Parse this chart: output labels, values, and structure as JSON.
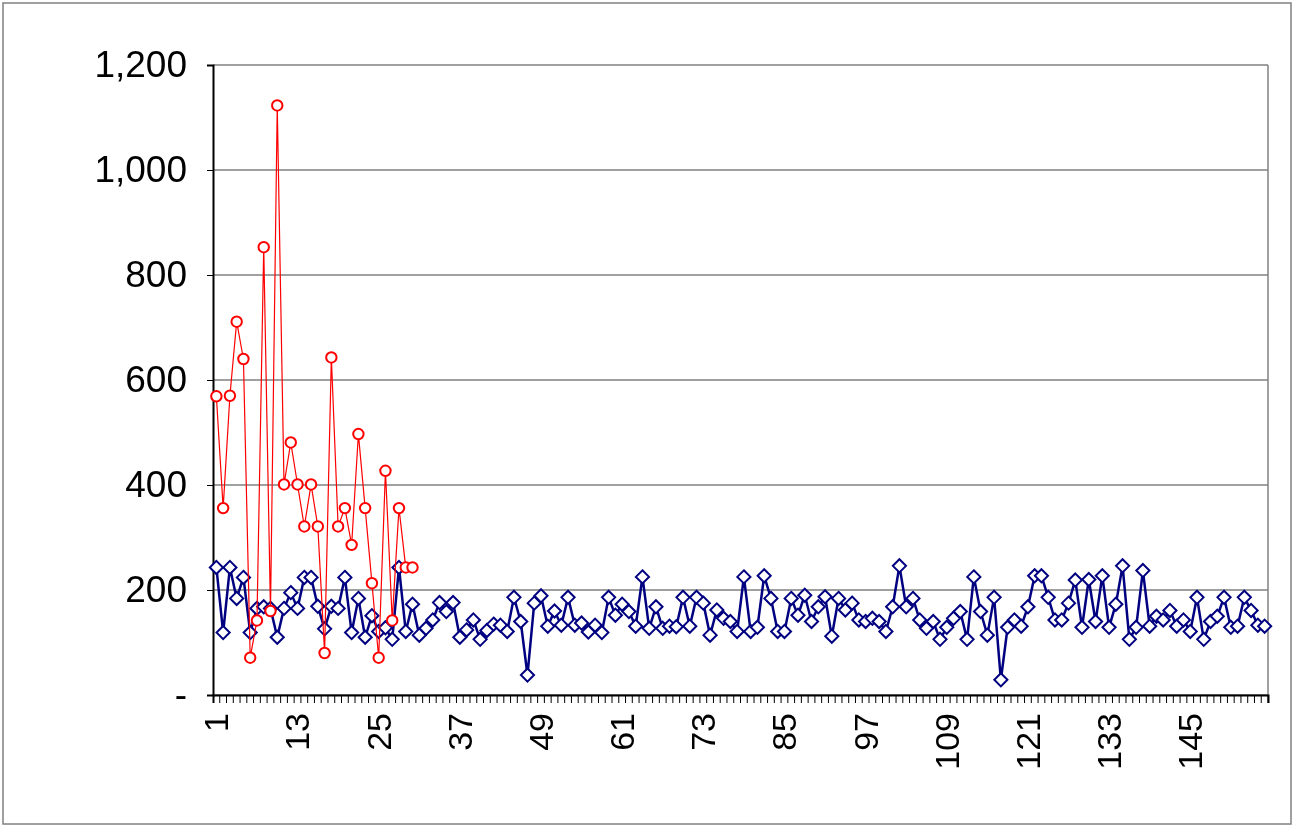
{
  "chart_data": {
    "type": "line",
    "categories": [
      "1",
      null,
      null,
      null,
      null,
      null,
      null,
      null,
      null,
      null,
      null,
      null,
      "13",
      null,
      null,
      null,
      null,
      null,
      null,
      null,
      null,
      null,
      null,
      null,
      "25",
      null,
      null,
      null,
      null,
      null,
      null,
      null,
      null,
      null,
      null,
      null,
      "37",
      null,
      null,
      null,
      null,
      null,
      null,
      null,
      null,
      null,
      null,
      null,
      "49",
      null,
      null,
      null,
      null,
      null,
      null,
      null,
      null,
      null,
      null,
      null,
      "61",
      null,
      null,
      null,
      null,
      null,
      null,
      null,
      null,
      null,
      null,
      null,
      "73",
      null,
      null,
      null,
      null,
      null,
      null,
      null,
      null,
      null,
      null,
      null,
      "85",
      null,
      null,
      null,
      null,
      null,
      null,
      null,
      null,
      null,
      null,
      null,
      "97",
      null,
      null,
      null,
      null,
      null,
      null,
      null,
      null,
      null,
      null,
      null,
      "109",
      null,
      null,
      null,
      null,
      null,
      null,
      null,
      null,
      null,
      null,
      null,
      "121",
      null,
      null,
      null,
      null,
      null,
      null,
      null,
      null,
      null,
      null,
      null,
      "133",
      null,
      null,
      null,
      null,
      null,
      null,
      null,
      null,
      null,
      null,
      null,
      "145",
      null,
      null,
      null,
      null,
      null,
      null,
      null,
      null,
      null,
      null,
      null
    ],
    "series": [
      {
        "color": "#000080",
        "marker": "diamond",
        "values": [
          243,
          119,
          243,
          184,
          224,
          119,
          165,
          168,
          165,
          110,
          165,
          195,
          165,
          224,
          224,
          169,
          126,
          169,
          165,
          224,
          119,
          184,
          110,
          151,
          121,
          128,
          106,
          243,
          121,
          173,
          114,
          127,
          143,
          176,
          159,
          176,
          110,
          124,
          143,
          106,
          123,
          135,
          133,
          121,
          186,
          140,
          38,
          175,
          189,
          131,
          160,
          133,
          186,
          133,
          137,
          120,
          133,
          119,
          186,
          152,
          173,
          159,
          131,
          225,
          127,
          168,
          127,
          131,
          130,
          186,
          131,
          186,
          175,
          114,
          162,
          146,
          140,
          121,
          225,
          121,
          129,
          227,
          184,
          121,
          121,
          184,
          152,
          190,
          140,
          168,
          187,
          112,
          184,
          162,
          175,
          143,
          140,
          146,
          140,
          121,
          168,
          246,
          168,
          184,
          143,
          127,
          140,
          106,
          129,
          146,
          159,
          106,
          225,
          159,
          114,
          186,
          29,
          129,
          143,
          131,
          168,
          227,
          227,
          186,
          143,
          143,
          175,
          219,
          129,
          220,
          140,
          227,
          129,
          173,
          246,
          106,
          129,
          237,
          131,
          150,
          143,
          161,
          131,
          143,
          121,
          186,
          106,
          140,
          150,
          186,
          129,
          131,
          186,
          161,
          133,
          131
        ]
      },
      {
        "color": "#ff0000",
        "marker": "circle",
        "values": [
          569,
          356,
          570,
          711,
          640,
          71,
          142,
          853,
          160,
          1123,
          401,
          481,
          401,
          321,
          401,
          321,
          80,
          643,
          321,
          356,
          286,
          497,
          356,
          213,
          71,
          427,
          142,
          356,
          243,
          243,
          null,
          null,
          null,
          null,
          null,
          null,
          null,
          null,
          null,
          null,
          null,
          null,
          null,
          null,
          null,
          null,
          null,
          null,
          null,
          null,
          null,
          null,
          null,
          null,
          null,
          null,
          null,
          null,
          null,
          null,
          null,
          null,
          null,
          null,
          null,
          null,
          null,
          null,
          null,
          null,
          null,
          null,
          null,
          null,
          null,
          null,
          null,
          null,
          null,
          null,
          null,
          null,
          null,
          null,
          null,
          null,
          null,
          null,
          null,
          null,
          null,
          null,
          null,
          null,
          null,
          null,
          null,
          null,
          null,
          null,
          null,
          null,
          null,
          null,
          null,
          null,
          null,
          null,
          null,
          null,
          null,
          null,
          null,
          null,
          null,
          null,
          null,
          null,
          null,
          null,
          null,
          null,
          null,
          null,
          null,
          null,
          null,
          null,
          null,
          null,
          null,
          null,
          null,
          null,
          null,
          null,
          null,
          null,
          null,
          null,
          null,
          null,
          null,
          null,
          null,
          null,
          null,
          null,
          null,
          null,
          null,
          null,
          null,
          null,
          null,
          null
        ]
      }
    ],
    "ylim": [
      0,
      1200
    ],
    "yticks": [
      {
        "value": 0,
        "label": "-"
      },
      200,
      400,
      600,
      800,
      {
        "value": 1000,
        "label": "1,000"
      },
      {
        "value": 1200,
        "label": "1,200"
      }
    ],
    "grid": "y"
  }
}
